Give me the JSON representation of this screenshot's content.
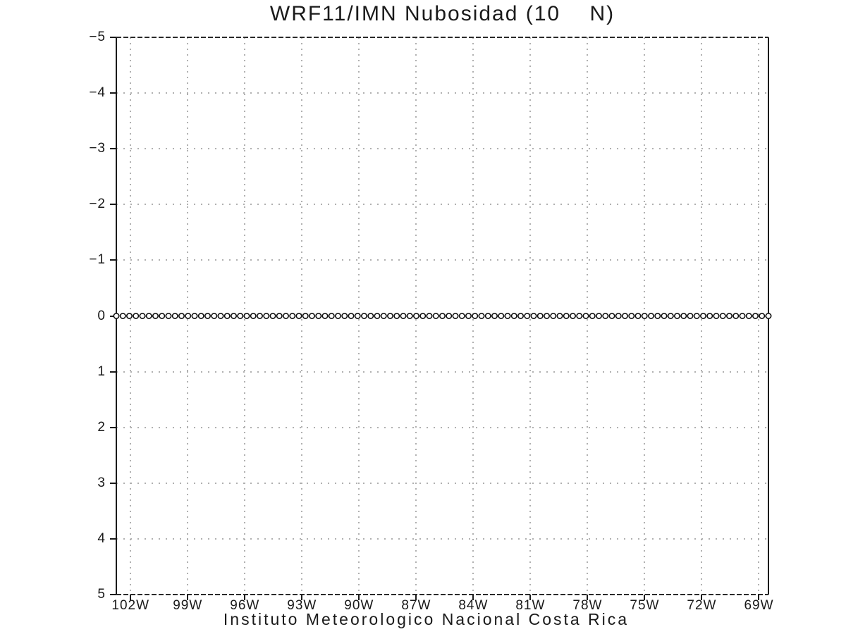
{
  "title": "WRF11/IMN Nubosidad (10    N)",
  "caption": "Instituto Meteorologico Nacional Costa Rica",
  "colors": {
    "background": "#ffffff",
    "frame": "#1a1a1a",
    "frame_dashed": "#2a2a2a",
    "grid": "#b0b0b0",
    "marker_stroke": "#111111",
    "marker_fill": "#ffffff",
    "text": "#1a1a1a"
  },
  "chart_data": {
    "type": "scatter",
    "marker": "open-circle",
    "title": "WRF11/IMN Nubosidad (10    N)",
    "xlabel": "Instituto Meteorologico Nacional Costa Rica",
    "ylabel": "",
    "grid": "dotted",
    "legend": "none",
    "x_axis": {
      "min": -102.75,
      "max": -68.5,
      "tick_lons": [
        -102,
        -99,
        -96,
        -93,
        -90,
        -87,
        -84,
        -81,
        -78,
        -75,
        -72,
        -69
      ],
      "tick_labels": [
        "102W",
        "99W",
        "96W",
        "93W",
        "90W",
        "87W",
        "84W",
        "81W",
        "78W",
        "75W",
        "72W",
        "69W"
      ]
    },
    "y_axis": {
      "min": -5,
      "max": 5,
      "inverted": true,
      "tick_values": [
        -5,
        -4,
        -3,
        -2,
        -1,
        0,
        1,
        2,
        3,
        4,
        5
      ],
      "tick_labels": [
        "−5",
        "−4",
        "−3",
        "−2",
        "−1",
        "0",
        "1",
        "2",
        "3",
        "4",
        "5"
      ]
    },
    "series": [
      {
        "name": "Nubosidad",
        "n_points": 101,
        "constant_value": 0,
        "values": [
          0,
          0,
          0,
          0,
          0,
          0,
          0,
          0,
          0,
          0,
          0,
          0,
          0,
          0,
          0,
          0,
          0,
          0,
          0,
          0,
          0,
          0,
          0,
          0,
          0,
          0,
          0,
          0,
          0,
          0,
          0,
          0,
          0,
          0,
          0,
          0,
          0,
          0,
          0,
          0,
          0,
          0,
          0,
          0,
          0,
          0,
          0,
          0,
          0,
          0,
          0,
          0,
          0,
          0,
          0,
          0,
          0,
          0,
          0,
          0,
          0,
          0,
          0,
          0,
          0,
          0,
          0,
          0,
          0,
          0,
          0,
          0,
          0,
          0,
          0,
          0,
          0,
          0,
          0,
          0,
          0,
          0,
          0,
          0,
          0,
          0,
          0,
          0,
          0,
          0,
          0,
          0,
          0,
          0,
          0,
          0,
          0,
          0,
          0,
          0,
          0
        ]
      }
    ]
  }
}
